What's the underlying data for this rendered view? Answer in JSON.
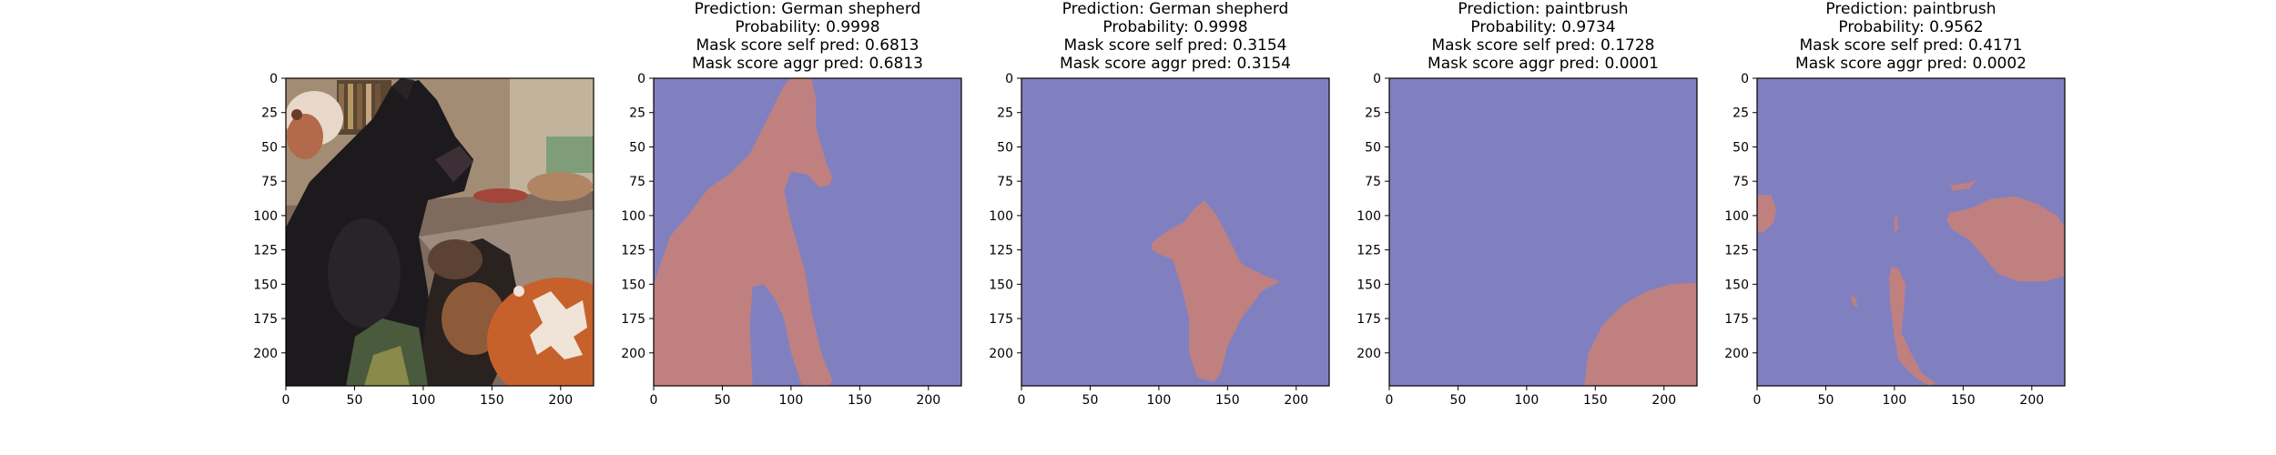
{
  "figure": {
    "background": "#ffffff"
  },
  "colors": {
    "mask_background": "#8080c0",
    "mask_foreground": "#c08080",
    "axes_edge": "#000000"
  },
  "chart_data": [
    {
      "type": "image",
      "image_kind": "photo",
      "description_label": "",
      "title_lines": [],
      "xlim": [
        0,
        224
      ],
      "ylim": [
        224,
        0
      ],
      "xticks": [
        0,
        50,
        100,
        150,
        200
      ],
      "yticks": [
        0,
        25,
        50,
        75,
        100,
        125,
        150,
        175,
        200
      ]
    },
    {
      "type": "image",
      "image_kind": "mask",
      "title_lines": [
        "Prediction: German shepherd",
        "Probability: 0.9998",
        "Mask score self pred: 0.6813",
        "Mask score aggr pred: 0.6813"
      ],
      "prediction": "German shepherd",
      "probability": 0.9998,
      "mask_score_self_pred": 0.6813,
      "mask_score_aggr_pred": 0.6813,
      "xlim": [
        0,
        224
      ],
      "ylim": [
        224,
        0
      ],
      "xticks": [
        0,
        50,
        100,
        150,
        200
      ],
      "yticks": [
        0,
        25,
        50,
        75,
        100,
        125,
        150,
        175,
        200
      ],
      "mask_polygons": [
        [
          [
            0,
            224
          ],
          [
            0,
            150
          ],
          [
            12,
            115
          ],
          [
            25,
            100
          ],
          [
            40,
            80
          ],
          [
            55,
            70
          ],
          [
            70,
            55
          ],
          [
            85,
            25
          ],
          [
            95,
            5
          ],
          [
            100,
            0
          ],
          [
            115,
            0
          ],
          [
            118,
            15
          ],
          [
            118,
            35
          ],
          [
            125,
            60
          ],
          [
            130,
            72
          ],
          [
            128,
            78
          ],
          [
            120,
            79
          ],
          [
            112,
            70
          ],
          [
            100,
            68
          ],
          [
            95,
            82
          ],
          [
            100,
            105
          ],
          [
            110,
            140
          ],
          [
            115,
            170
          ],
          [
            122,
            200
          ],
          [
            130,
            220
          ],
          [
            128,
            224
          ],
          [
            108,
            224
          ],
          [
            100,
            200
          ],
          [
            95,
            175
          ],
          [
            88,
            160
          ],
          [
            80,
            150
          ],
          [
            72,
            152
          ],
          [
            70,
            180
          ],
          [
            72,
            224
          ]
        ]
      ]
    },
    {
      "type": "image",
      "image_kind": "mask",
      "title_lines": [
        "Prediction: German shepherd",
        "Probability: 0.9998",
        "Mask score self pred: 0.3154",
        "Mask score aggr pred: 0.3154"
      ],
      "prediction": "German shepherd",
      "probability": 0.9998,
      "mask_score_self_pred": 0.3154,
      "mask_score_aggr_pred": 0.3154,
      "xlim": [
        0,
        224
      ],
      "ylim": [
        224,
        0
      ],
      "xticks": [
        0,
        50,
        100,
        150,
        200
      ],
      "yticks": [
        0,
        25,
        50,
        75,
        100,
        125,
        150,
        175,
        200
      ],
      "mask_polygons": [
        [
          [
            95,
            120
          ],
          [
            105,
            112
          ],
          [
            118,
            105
          ],
          [
            126,
            95
          ],
          [
            133,
            89
          ],
          [
            142,
            100
          ],
          [
            150,
            115
          ],
          [
            160,
            135
          ],
          [
            175,
            143
          ],
          [
            188,
            148
          ],
          [
            175,
            155
          ],
          [
            160,
            175
          ],
          [
            150,
            195
          ],
          [
            145,
            215
          ],
          [
            140,
            221
          ],
          [
            128,
            218
          ],
          [
            122,
            200
          ],
          [
            122,
            175
          ],
          [
            116,
            150
          ],
          [
            110,
            132
          ],
          [
            100,
            128
          ],
          [
            95,
            125
          ]
        ]
      ]
    },
    {
      "type": "image",
      "image_kind": "mask",
      "title_lines": [
        "Prediction: paintbrush",
        "Probability: 0.9734",
        "Mask score self pred: 0.1728",
        "Mask score aggr pred: 0.0001"
      ],
      "prediction": "paintbrush",
      "probability": 0.9734,
      "mask_score_self_pred": 0.1728,
      "mask_score_aggr_pred": 0.0001,
      "xlim": [
        0,
        224
      ],
      "ylim": [
        224,
        0
      ],
      "xticks": [
        0,
        50,
        100,
        150,
        200
      ],
      "yticks": [
        0,
        25,
        50,
        75,
        100,
        125,
        150,
        175,
        200
      ],
      "mask_polygons": [
        [
          [
            142,
            224
          ],
          [
            145,
            200
          ],
          [
            155,
            180
          ],
          [
            170,
            165
          ],
          [
            188,
            155
          ],
          [
            205,
            150
          ],
          [
            224,
            149
          ],
          [
            224,
            224
          ]
        ]
      ]
    },
    {
      "type": "image",
      "image_kind": "mask",
      "title_lines": [
        "Prediction: paintbrush",
        "Probability: 0.9562",
        "Mask score self pred: 0.4171",
        "Mask score aggr pred: 0.0002"
      ],
      "prediction": "paintbrush",
      "probability": 0.9562,
      "mask_score_self_pred": 0.4171,
      "mask_score_aggr_pred": 0.0002,
      "xlim": [
        0,
        224
      ],
      "ylim": [
        224,
        0
      ],
      "xticks": [
        0,
        50,
        100,
        150,
        200
      ],
      "yticks": [
        0,
        25,
        50,
        75,
        100,
        125,
        150,
        175,
        200
      ],
      "mask_polygons": [
        [
          [
            0,
            85
          ],
          [
            10,
            85
          ],
          [
            14,
            95
          ],
          [
            12,
            105
          ],
          [
            5,
            112
          ],
          [
            0,
            112
          ]
        ],
        [
          [
            140,
            98
          ],
          [
            155,
            95
          ],
          [
            170,
            88
          ],
          [
            188,
            86
          ],
          [
            205,
            92
          ],
          [
            218,
            100
          ],
          [
            224,
            108
          ],
          [
            224,
            144
          ],
          [
            210,
            148
          ],
          [
            190,
            148
          ],
          [
            175,
            142
          ],
          [
            165,
            130
          ],
          [
            155,
            118
          ],
          [
            142,
            110
          ],
          [
            138,
            103
          ]
        ],
        [
          [
            140,
            78
          ],
          [
            155,
            76
          ],
          [
            160,
            73
          ],
          [
            155,
            80
          ],
          [
            143,
            82
          ]
        ],
        [
          [
            100,
            102
          ],
          [
            102,
            100
          ],
          [
            103,
            110
          ],
          [
            100,
            112
          ]
        ],
        [
          [
            98,
            137
          ],
          [
            103,
            139
          ],
          [
            108,
            150
          ],
          [
            107,
            165
          ],
          [
            105,
            185
          ],
          [
            112,
            200
          ],
          [
            120,
            215
          ],
          [
            130,
            222
          ],
          [
            126,
            224
          ],
          [
            118,
            220
          ],
          [
            110,
            213
          ],
          [
            103,
            205
          ],
          [
            100,
            188
          ],
          [
            97,
            165
          ],
          [
            96,
            145
          ]
        ],
        [
          [
            68,
            158
          ],
          [
            72,
            160
          ],
          [
            73,
            167
          ],
          [
            70,
            165
          ]
        ]
      ]
    }
  ]
}
